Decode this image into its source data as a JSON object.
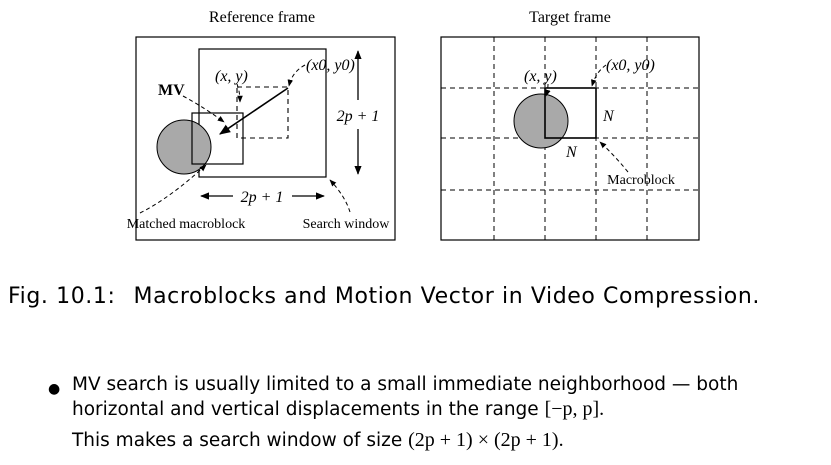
{
  "reference": {
    "title": "Reference frame",
    "mv_label": "MV",
    "xy_label": "(x, y)",
    "x0y0_label": "(x0, y0)",
    "height_label": "2p + 1",
    "width_label": "2p + 1",
    "matched_label": "Matched macroblock",
    "search_label": "Search window"
  },
  "target": {
    "title": "Target frame",
    "xy_label": "(x, y)",
    "x0y0_label": "(x0, y0)",
    "n_right_label": "N",
    "n_bottom_label": "N",
    "macroblock_label": "Macroblock"
  },
  "caption": {
    "number": "Fig. 10.1:",
    "text": "Macroblocks and Motion Vector in Video Compression."
  },
  "bullet": {
    "line1_text": "MV search is usually limited to a small immediate neighborhood — both",
    "line2_text": "horizontal and vertical displacements in the range ",
    "line2_math": "[−p, p].",
    "line3_text": "This makes a search window of size ",
    "line3_math": "(2p + 1) × (2p + 1)."
  }
}
